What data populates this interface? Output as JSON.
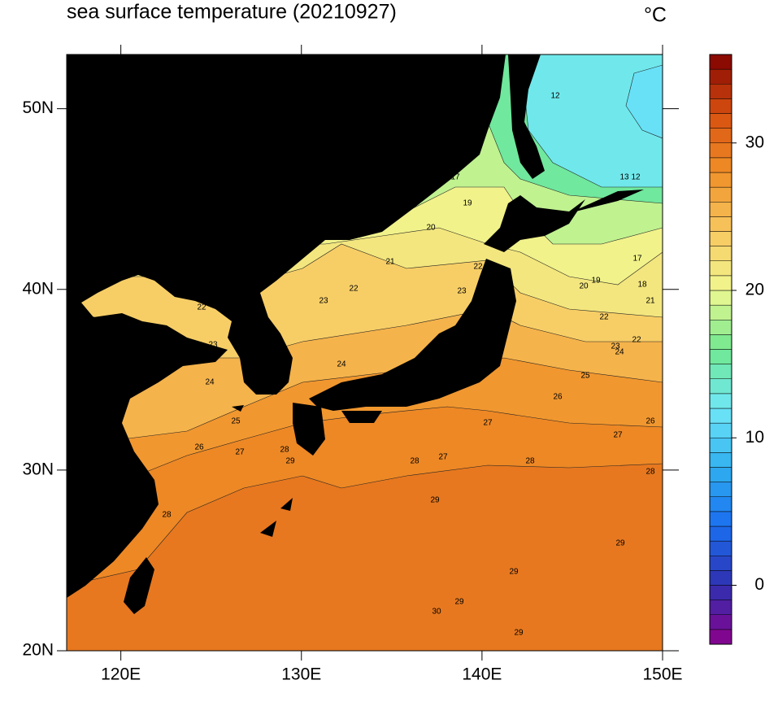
{
  "map": {
    "title": "sea surface temperature (20210927)",
    "unit": "°C",
    "lon_lim": [
      117,
      150
    ],
    "lat_lim": [
      20,
      53
    ],
    "lon_ticks": [
      {
        "value": 120,
        "label": "120E"
      },
      {
        "value": 130,
        "label": "130E"
      },
      {
        "value": 140,
        "label": "140E"
      },
      {
        "value": 150,
        "label": "150E"
      }
    ],
    "lat_ticks": [
      {
        "value": 20,
        "label": "20N"
      },
      {
        "value": 30,
        "label": "30N"
      },
      {
        "value": 40,
        "label": "40N"
      },
      {
        "value": 50,
        "label": "50N"
      }
    ],
    "filled_levels": [
      29,
      28,
      27,
      25,
      23,
      21,
      20,
      18,
      15,
      12,
      11
    ],
    "contour_labels": [
      12,
      17,
      19,
      20,
      21,
      22,
      22,
      23,
      23,
      22,
      23,
      24,
      24,
      25,
      26,
      27,
      28,
      29,
      28,
      28,
      27,
      28,
      28,
      27,
      26,
      26,
      27,
      25,
      22,
      23,
      24,
      22,
      21,
      20,
      19,
      18,
      17,
      13,
      12,
      29,
      29,
      29,
      29,
      30,
      29
    ],
    "colorbar": {
      "lim": [
        -4,
        36
      ],
      "ticks": [
        0,
        10,
        20,
        30
      ],
      "colormap": [
        "#8b008b",
        "#3030b0",
        "#1a6ef0",
        "#30b0f0",
        "#70e8f8",
        "#70e890",
        "#f0f890",
        "#f8c860",
        "#f09028",
        "#d85010",
        "#800000"
      ]
    }
  }
}
